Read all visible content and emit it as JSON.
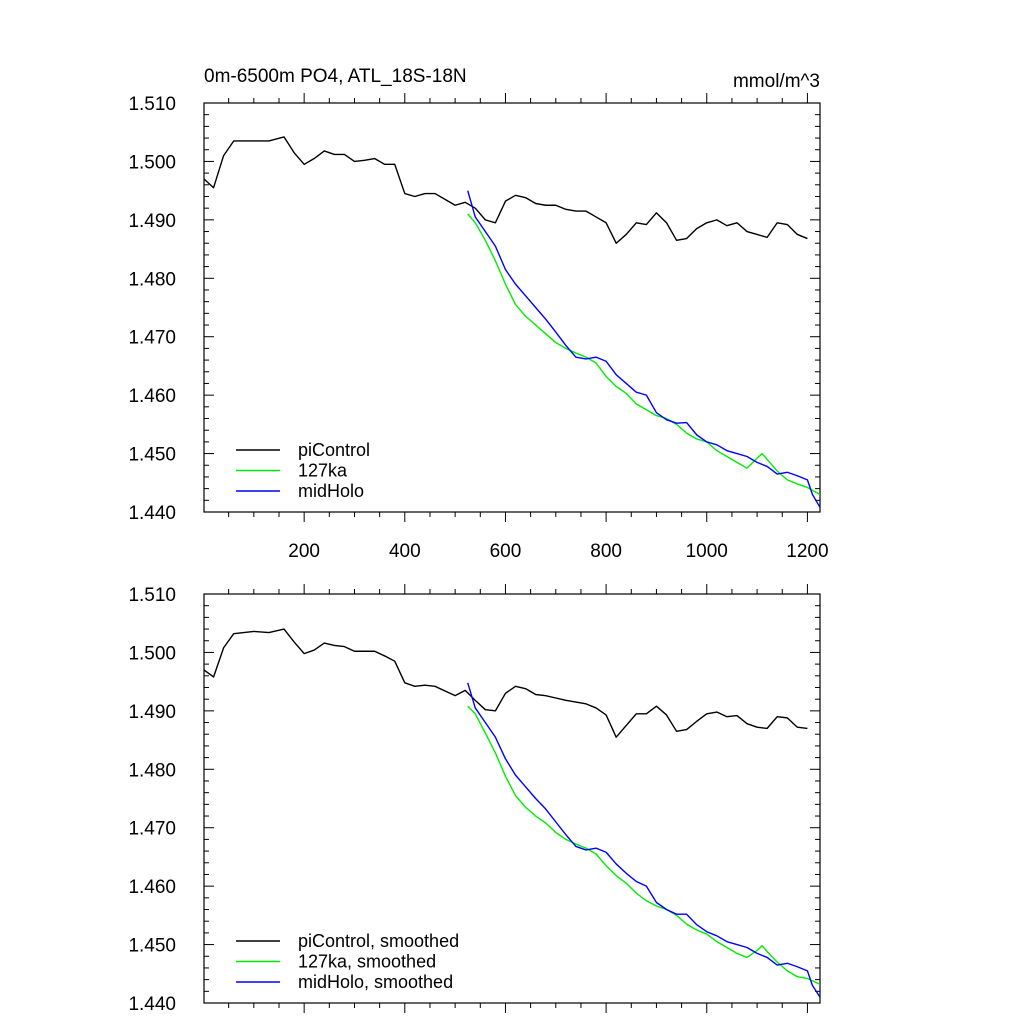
{
  "header": {
    "title": "0m-6500m PO4, ATL_18S-18N",
    "units": "mmol/m^3"
  },
  "colors": {
    "piControl": "#000000",
    "127ka": "#00ee00",
    "midHolo": "#0000ff"
  },
  "chart_data": [
    {
      "type": "line",
      "panel": "top",
      "xlim": [
        1,
        1225
      ],
      "ylim": [
        1.44,
        1.51
      ],
      "xticks": [
        200,
        400,
        600,
        800,
        1000,
        1200
      ],
      "xtick_labels": [
        "200",
        "400",
        "600",
        "800",
        "1000",
        "1200"
      ],
      "yticks": [
        1.44,
        1.45,
        1.46,
        1.47,
        1.48,
        1.49,
        1.5,
        1.51
      ],
      "ytick_labels": [
        "1.440",
        "1.450",
        "1.460",
        "1.470",
        "1.480",
        "1.490",
        "1.500",
        "1.510"
      ],
      "legend_position": "bottom-left",
      "grid": false,
      "series": [
        {
          "name": "piControl",
          "color_key": "piControl",
          "x": [
            1,
            20,
            40,
            60,
            80,
            100,
            130,
            160,
            180,
            200,
            220,
            240,
            260,
            280,
            300,
            320,
            340,
            360,
            380,
            400,
            420,
            440,
            460,
            480,
            500,
            520,
            540,
            560,
            580,
            600,
            620,
            640,
            660,
            680,
            700,
            720,
            740,
            760,
            780,
            800,
            820,
            840,
            860,
            880,
            900,
            920,
            940,
            960,
            980,
            1000,
            1020,
            1040,
            1060,
            1080,
            1100,
            1120,
            1140,
            1160,
            1180,
            1200
          ],
          "values": [
            1.497,
            1.4955,
            1.501,
            1.5035,
            1.5035,
            1.5035,
            1.5035,
            1.5042,
            1.5015,
            1.4995,
            1.5005,
            1.5018,
            1.5012,
            1.5012,
            1.5,
            1.5002,
            1.5005,
            1.4995,
            1.4995,
            1.4945,
            1.494,
            1.4945,
            1.4945,
            1.4935,
            1.4925,
            1.493,
            1.492,
            1.49,
            1.4895,
            1.4932,
            1.4942,
            1.4938,
            1.4928,
            1.4925,
            1.4925,
            1.4918,
            1.4915,
            1.4915,
            1.4905,
            1.4895,
            1.486,
            1.4875,
            1.4895,
            1.4892,
            1.4912,
            1.4895,
            1.4865,
            1.4868,
            1.4885,
            1.4895,
            1.49,
            1.489,
            1.4895,
            1.488,
            1.4875,
            1.487,
            1.4895,
            1.4892,
            1.4875,
            1.4868
          ]
        },
        {
          "name": "127ka",
          "color_key": "127ka",
          "x": [
            525,
            540,
            560,
            580,
            600,
            620,
            640,
            660,
            680,
            700,
            720,
            740,
            760,
            780,
            800,
            820,
            840,
            860,
            880,
            900,
            920,
            940,
            960,
            980,
            1000,
            1020,
            1040,
            1060,
            1080,
            1100,
            1110,
            1120,
            1140,
            1160,
            1180,
            1200,
            1225
          ],
          "values": [
            1.491,
            1.4895,
            1.4865,
            1.483,
            1.479,
            1.4755,
            1.4735,
            1.472,
            1.4705,
            1.469,
            1.468,
            1.4672,
            1.4665,
            1.4655,
            1.4632,
            1.4615,
            1.4603,
            1.4585,
            1.4575,
            1.4565,
            1.456,
            1.455,
            1.4535,
            1.4525,
            1.452,
            1.4505,
            1.4495,
            1.4485,
            1.4475,
            1.4492,
            1.45,
            1.449,
            1.447,
            1.4455,
            1.4448,
            1.4442,
            1.443
          ]
        },
        {
          "name": "midHolo",
          "color_key": "midHolo",
          "x": [
            525,
            540,
            560,
            580,
            600,
            620,
            640,
            660,
            680,
            700,
            720,
            740,
            760,
            780,
            800,
            820,
            840,
            860,
            880,
            900,
            920,
            940,
            960,
            980,
            1000,
            1020,
            1040,
            1060,
            1080,
            1100,
            1120,
            1140,
            1160,
            1180,
            1200,
            1210,
            1225
          ],
          "values": [
            1.495,
            1.4905,
            1.488,
            1.4855,
            1.4815,
            1.479,
            1.477,
            1.475,
            1.473,
            1.4708,
            1.4685,
            1.4665,
            1.4662,
            1.4665,
            1.4658,
            1.4635,
            1.462,
            1.4605,
            1.46,
            1.457,
            1.4558,
            1.4552,
            1.4553,
            1.4532,
            1.452,
            1.4515,
            1.4505,
            1.45,
            1.4495,
            1.4485,
            1.4478,
            1.4465,
            1.4468,
            1.4462,
            1.4455,
            1.443,
            1.4408
          ]
        }
      ],
      "legend": [
        "piControl",
        "127ka",
        "midHolo"
      ]
    },
    {
      "type": "line",
      "panel": "bottom",
      "xlim": [
        1,
        1225
      ],
      "ylim": [
        1.44,
        1.51
      ],
      "xticks": [
        200,
        400,
        600,
        800,
        1000,
        1200
      ],
      "yticks": [
        1.44,
        1.45,
        1.46,
        1.47,
        1.48,
        1.49,
        1.5,
        1.51
      ],
      "ytick_labels": [
        "1.440",
        "1.450",
        "1.460",
        "1.470",
        "1.480",
        "1.490",
        "1.500",
        "1.510"
      ],
      "legend_position": "bottom-left",
      "grid": false,
      "series": [
        {
          "name": "piControl, smoothed",
          "color_key": "piControl",
          "x": [
            1,
            20,
            40,
            60,
            80,
            100,
            130,
            160,
            180,
            200,
            220,
            240,
            260,
            280,
            300,
            320,
            340,
            360,
            380,
            400,
            420,
            440,
            460,
            480,
            500,
            520,
            540,
            560,
            580,
            600,
            620,
            640,
            660,
            680,
            700,
            720,
            740,
            760,
            780,
            800,
            820,
            840,
            860,
            880,
            900,
            920,
            940,
            960,
            980,
            1000,
            1020,
            1040,
            1060,
            1080,
            1100,
            1120,
            1140,
            1160,
            1180,
            1200
          ],
          "values": [
            1.497,
            1.4958,
            1.5008,
            1.5032,
            1.5034,
            1.5036,
            1.5034,
            1.504,
            1.5018,
            1.4998,
            1.5004,
            1.5016,
            1.5012,
            1.501,
            1.5002,
            1.5002,
            1.5002,
            1.4994,
            1.4985,
            1.4948,
            1.4942,
            1.4944,
            1.4942,
            1.4934,
            1.4926,
            1.4935,
            1.4918,
            1.4902,
            1.49,
            1.493,
            1.4942,
            1.4938,
            1.4928,
            1.4926,
            1.4922,
            1.4918,
            1.4915,
            1.4912,
            1.4905,
            1.4893,
            1.4855,
            1.4875,
            1.4895,
            1.4895,
            1.4908,
            1.4893,
            1.4865,
            1.4868,
            1.4882,
            1.4895,
            1.4898,
            1.489,
            1.4892,
            1.4878,
            1.4872,
            1.487,
            1.489,
            1.4888,
            1.4872,
            1.487
          ]
        },
        {
          "name": "127ka, smoothed",
          "color_key": "127ka",
          "x": [
            525,
            540,
            560,
            580,
            600,
            620,
            640,
            660,
            680,
            700,
            720,
            740,
            760,
            780,
            800,
            820,
            840,
            860,
            880,
            900,
            920,
            940,
            960,
            980,
            1000,
            1020,
            1040,
            1060,
            1080,
            1100,
            1110,
            1120,
            1140,
            1160,
            1180,
            1200,
            1225
          ],
          "values": [
            1.4908,
            1.4895,
            1.4862,
            1.4828,
            1.4788,
            1.4755,
            1.4735,
            1.472,
            1.4708,
            1.4692,
            1.468,
            1.4672,
            1.4665,
            1.4655,
            1.4635,
            1.4618,
            1.4605,
            1.4588,
            1.4575,
            1.4566,
            1.456,
            1.455,
            1.4535,
            1.4525,
            1.4518,
            1.4505,
            1.4495,
            1.4485,
            1.4478,
            1.449,
            1.4498,
            1.4488,
            1.447,
            1.4455,
            1.4445,
            1.4442,
            1.4432
          ]
        },
        {
          "name": "midHolo, smoothed",
          "color_key": "midHolo",
          "x": [
            525,
            540,
            560,
            580,
            600,
            620,
            640,
            660,
            680,
            700,
            720,
            740,
            760,
            780,
            800,
            820,
            840,
            860,
            880,
            900,
            920,
            940,
            960,
            980,
            1000,
            1020,
            1040,
            1060,
            1080,
            1100,
            1120,
            1140,
            1160,
            1180,
            1200,
            1210,
            1225
          ],
          "values": [
            1.4948,
            1.4905,
            1.488,
            1.4855,
            1.4818,
            1.479,
            1.477,
            1.475,
            1.4732,
            1.471,
            1.4688,
            1.4668,
            1.4662,
            1.4665,
            1.4658,
            1.4638,
            1.4622,
            1.4608,
            1.46,
            1.4572,
            1.456,
            1.4552,
            1.4552,
            1.4534,
            1.4522,
            1.4515,
            1.4505,
            1.45,
            1.4495,
            1.4485,
            1.4478,
            1.4465,
            1.4468,
            1.4462,
            1.4455,
            1.443,
            1.441
          ]
        }
      ],
      "legend": [
        "piControl, smoothed",
        "127ka, smoothed",
        "midHolo, smoothed"
      ]
    }
  ]
}
